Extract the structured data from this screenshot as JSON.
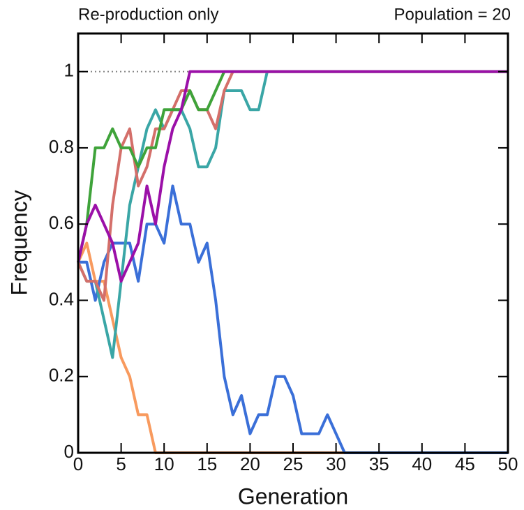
{
  "chart_data": {
    "type": "line",
    "title": "Re-production only",
    "subtitle": "Population = 20",
    "x_label": "Generation",
    "y_label": "Frequency",
    "x": [
      0,
      1,
      2,
      3,
      4,
      5,
      6,
      7,
      8,
      9,
      10,
      11,
      12,
      13,
      14,
      15,
      16,
      17,
      18,
      19,
      20,
      21,
      22,
      23,
      24,
      25,
      26,
      27,
      28,
      29,
      30,
      31,
      32,
      33,
      34,
      35,
      36,
      37,
      38,
      39,
      40,
      41,
      42,
      43,
      44,
      45,
      46,
      47,
      48,
      49,
      50
    ],
    "series": [
      {
        "color": "#f89a5e",
        "values": [
          0.5,
          0.55,
          0.45,
          0.45,
          0.35,
          0.25,
          0.2,
          0.1,
          0.1,
          0,
          0,
          0,
          0,
          0,
          0,
          0,
          0,
          0,
          0,
          0,
          0,
          0,
          0,
          0,
          0,
          0,
          0,
          0,
          0,
          0,
          0,
          0,
          0,
          0,
          0,
          0,
          0,
          0,
          0,
          0,
          0,
          0,
          0,
          0,
          0,
          0,
          0,
          0,
          0,
          0,
          0
        ]
      },
      {
        "color": "#3a6fd8",
        "values": [
          0.5,
          0.5,
          0.4,
          0.5,
          0.55,
          0.55,
          0.55,
          0.45,
          0.6,
          0.6,
          0.55,
          0.7,
          0.6,
          0.6,
          0.5,
          0.55,
          0.4,
          0.2,
          0.1,
          0.15,
          0.05,
          0.1,
          0.1,
          0.2,
          0.2,
          0.15,
          0.05,
          0.05,
          0.05,
          0.1,
          0.05,
          0,
          0,
          0,
          0,
          0,
          0,
          0,
          0,
          0,
          0,
          0,
          0,
          0,
          0,
          0,
          0,
          0,
          0,
          0,
          0
        ]
      },
      {
        "color": "#3aa6a6",
        "values": [
          0.5,
          0.45,
          0.45,
          0.35,
          0.25,
          0.45,
          0.65,
          0.75,
          0.85,
          0.9,
          0.85,
          0.9,
          0.9,
          0.85,
          0.75,
          0.75,
          0.8,
          0.95,
          0.95,
          0.95,
          0.9,
          0.9,
          1,
          1,
          1,
          1,
          1,
          1,
          1,
          1,
          1,
          1,
          1,
          1,
          1,
          1,
          1,
          1,
          1,
          1,
          1,
          1,
          1,
          1,
          1,
          1,
          1,
          1,
          1,
          1,
          1
        ]
      },
      {
        "color": "#d46f6a",
        "values": [
          0.5,
          0.45,
          0.45,
          0.4,
          0.65,
          0.8,
          0.85,
          0.7,
          0.75,
          0.85,
          0.85,
          0.9,
          0.95,
          0.95,
          0.9,
          0.9,
          0.85,
          0.95,
          1,
          1,
          1,
          1,
          1,
          1,
          1,
          1,
          1,
          1,
          1,
          1,
          1,
          1,
          1,
          1,
          1,
          1,
          1,
          1,
          1,
          1,
          1,
          1,
          1,
          1,
          1,
          1,
          1,
          1,
          1,
          1,
          1
        ]
      },
      {
        "color": "#3fa33a",
        "values": [
          0.5,
          0.6,
          0.8,
          0.8,
          0.85,
          0.8,
          0.8,
          0.75,
          0.8,
          0.8,
          0.9,
          0.9,
          0.9,
          0.95,
          0.9,
          0.9,
          0.95,
          1,
          1,
          1,
          1,
          1,
          1,
          1,
          1,
          1,
          1,
          1,
          1,
          1,
          1,
          1,
          1,
          1,
          1,
          1,
          1,
          1,
          1,
          1,
          1,
          1,
          1,
          1,
          1,
          1,
          1,
          1,
          1,
          1,
          1
        ]
      },
      {
        "color": "#9b10a8",
        "values": [
          0.5,
          0.6,
          0.65,
          0.6,
          0.55,
          0.45,
          0.5,
          0.55,
          0.7,
          0.6,
          0.75,
          0.85,
          0.9,
          1,
          1,
          1,
          1,
          1,
          1,
          1,
          1,
          1,
          1,
          1,
          1,
          1,
          1,
          1,
          1,
          1,
          1,
          1,
          1,
          1,
          1,
          1,
          1,
          1,
          1,
          1,
          1,
          1,
          1,
          1,
          1,
          1,
          1,
          1,
          1,
          1,
          1
        ]
      }
    ],
    "xlim": [
      0,
      50
    ],
    "xticks": [
      0,
      5,
      10,
      15,
      20,
      25,
      30,
      35,
      40,
      45,
      50
    ],
    "ylim": [
      0,
      1.1
    ],
    "yticks": [
      0,
      0.2,
      0.4,
      0.6,
      0.8,
      1
    ],
    "reference_line": 1
  }
}
